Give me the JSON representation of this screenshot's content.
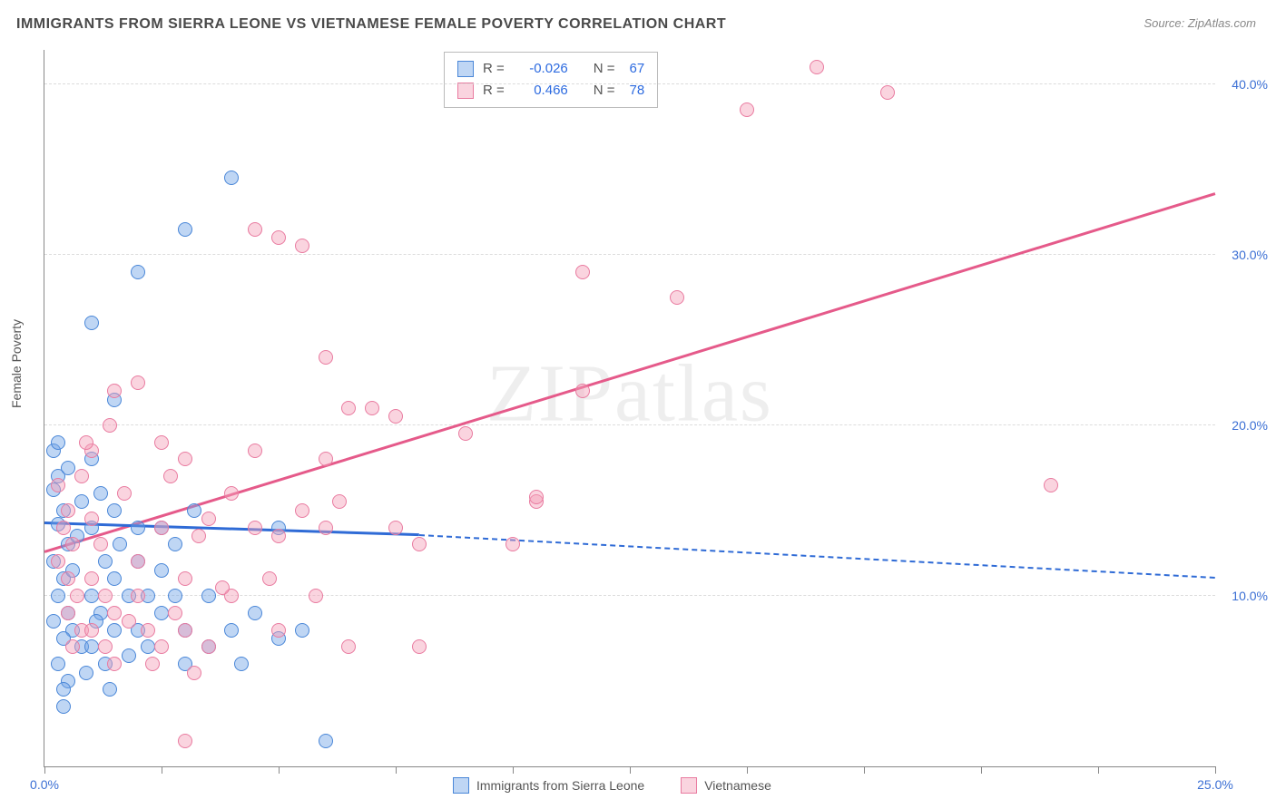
{
  "title": "IMMIGRANTS FROM SIERRA LEONE VS VIETNAMESE FEMALE POVERTY CORRELATION CHART",
  "source": "Source: ZipAtlas.com",
  "ylabel": "Female Poverty",
  "watermark": "ZIPatlas",
  "chart": {
    "type": "scatter",
    "xlim": [
      0,
      25
    ],
    "ylim": [
      0,
      42
    ],
    "xticks": [
      0,
      2.5,
      5,
      7.5,
      10,
      12.5,
      15,
      17.5,
      20,
      22.5,
      25
    ],
    "xtick_labels": {
      "0": "0.0%",
      "25": "25.0%"
    },
    "yticks": [
      10,
      20,
      30,
      40
    ],
    "ytick_labels": [
      "10.0%",
      "20.0%",
      "30.0%",
      "40.0%"
    ],
    "grid_color": "#dcdcdc",
    "axis_color": "#888888",
    "background_color": "#ffffff",
    "series": [
      {
        "name": "Immigrants from Sierra Leone",
        "color_fill": "rgba(113,164,231,0.45)",
        "color_stroke": "#4a87d8",
        "R": "-0.026",
        "N": "67",
        "trend": {
          "x1": 0,
          "y1": 14.2,
          "x2": 8.0,
          "y2": 13.5,
          "x2_dash": 25,
          "y2_dash": 11.0,
          "color": "#2f6bd6"
        },
        "points": [
          [
            0.2,
            18.5
          ],
          [
            0.3,
            17.0
          ],
          [
            0.2,
            16.2
          ],
          [
            0.4,
            15.0
          ],
          [
            0.3,
            14.2
          ],
          [
            0.5,
            13.0
          ],
          [
            0.2,
            12.0
          ],
          [
            0.4,
            11.0
          ],
          [
            0.3,
            10.0
          ],
          [
            0.5,
            9.0
          ],
          [
            0.2,
            8.5
          ],
          [
            0.6,
            8.0
          ],
          [
            0.4,
            7.5
          ],
          [
            0.8,
            7.0
          ],
          [
            0.3,
            6.0
          ],
          [
            0.5,
            5.0
          ],
          [
            0.4,
            3.5
          ],
          [
            1.0,
            18.0
          ],
          [
            1.2,
            16.0
          ],
          [
            1.0,
            14.0
          ],
          [
            1.3,
            12.0
          ],
          [
            1.0,
            10.0
          ],
          [
            1.2,
            9.0
          ],
          [
            1.5,
            8.0
          ],
          [
            1.0,
            7.0
          ],
          [
            1.3,
            6.0
          ],
          [
            1.5,
            11.0
          ],
          [
            1.6,
            13.0
          ],
          [
            1.8,
            10.0
          ],
          [
            2.0,
            14.0
          ],
          [
            2.0,
            12.0
          ],
          [
            2.2,
            10.0
          ],
          [
            2.0,
            8.0
          ],
          [
            2.2,
            7.0
          ],
          [
            2.5,
            9.0
          ],
          [
            2.5,
            14.0
          ],
          [
            2.8,
            10.0
          ],
          [
            3.0,
            8.0
          ],
          [
            3.0,
            6.0
          ],
          [
            3.5,
            7.0
          ],
          [
            3.5,
            10.0
          ],
          [
            4.0,
            8.0
          ],
          [
            4.5,
            9.0
          ],
          [
            5.0,
            7.5
          ],
          [
            5.0,
            14.0
          ],
          [
            5.5,
            8.0
          ],
          [
            6.0,
            1.5
          ],
          [
            0.3,
            19.0
          ],
          [
            1.0,
            26.0
          ],
          [
            1.5,
            21.5
          ],
          [
            2.0,
            29.0
          ],
          [
            3.0,
            31.5
          ],
          [
            4.0,
            34.5
          ],
          [
            0.5,
            17.5
          ],
          [
            0.8,
            15.5
          ],
          [
            1.5,
            15.0
          ],
          [
            0.6,
            11.5
          ],
          [
            2.5,
            11.5
          ],
          [
            1.8,
            6.5
          ],
          [
            2.8,
            13.0
          ],
          [
            0.9,
            5.5
          ],
          [
            1.4,
            4.5
          ],
          [
            3.2,
            15.0
          ],
          [
            4.2,
            6.0
          ],
          [
            0.7,
            13.5
          ],
          [
            1.1,
            8.5
          ],
          [
            0.4,
            4.5
          ]
        ]
      },
      {
        "name": "Vietnamese",
        "color_fill": "rgba(244,160,185,0.45)",
        "color_stroke": "#e97ba0",
        "R": "0.466",
        "N": "78",
        "trend": {
          "x1": 0,
          "y1": 12.5,
          "x2": 25,
          "y2": 33.5,
          "color": "#e55a8a"
        },
        "points": [
          [
            0.3,
            16.5
          ],
          [
            0.5,
            15.0
          ],
          [
            0.4,
            14.0
          ],
          [
            0.6,
            13.0
          ],
          [
            0.3,
            12.0
          ],
          [
            0.5,
            11.0
          ],
          [
            0.7,
            10.0
          ],
          [
            0.5,
            9.0
          ],
          [
            0.8,
            8.0
          ],
          [
            0.6,
            7.0
          ],
          [
            1.0,
            14.5
          ],
          [
            1.2,
            13.0
          ],
          [
            1.0,
            11.0
          ],
          [
            1.3,
            10.0
          ],
          [
            1.5,
            9.0
          ],
          [
            1.0,
            8.0
          ],
          [
            1.3,
            7.0
          ],
          [
            1.5,
            6.0
          ],
          [
            1.8,
            8.5
          ],
          [
            2.0,
            12.0
          ],
          [
            2.0,
            10.0
          ],
          [
            2.2,
            8.0
          ],
          [
            2.5,
            7.0
          ],
          [
            2.5,
            14.0
          ],
          [
            2.8,
            9.0
          ],
          [
            3.0,
            11.0
          ],
          [
            3.0,
            8.0
          ],
          [
            3.5,
            7.0
          ],
          [
            3.5,
            14.5
          ],
          [
            4.0,
            10.0
          ],
          [
            4.5,
            14.0
          ],
          [
            5.0,
            13.5
          ],
          [
            5.0,
            8.0
          ],
          [
            5.5,
            15.0
          ],
          [
            6.0,
            14.0
          ],
          [
            6.5,
            7.0
          ],
          [
            7.0,
            21.0
          ],
          [
            7.5,
            14.0
          ],
          [
            8.0,
            7.0
          ],
          [
            8.0,
            13.0
          ],
          [
            9.0,
            19.5
          ],
          [
            10.0,
            13.0
          ],
          [
            10.5,
            15.5
          ],
          [
            10.5,
            15.8
          ],
          [
            3.0,
            1.5
          ],
          [
            4.5,
            31.5
          ],
          [
            5.0,
            31.0
          ],
          [
            5.5,
            30.5
          ],
          [
            6.0,
            24.0
          ],
          [
            6.5,
            21.0
          ],
          [
            1.5,
            22.0
          ],
          [
            2.0,
            22.5
          ],
          [
            2.5,
            19.0
          ],
          [
            3.0,
            18.0
          ],
          [
            4.0,
            16.0
          ],
          [
            1.0,
            18.5
          ],
          [
            0.8,
            17.0
          ],
          [
            4.5,
            18.5
          ],
          [
            6.0,
            18.0
          ],
          [
            11.5,
            29.0
          ],
          [
            11.5,
            22.0
          ],
          [
            13.5,
            27.5
          ],
          [
            15.0,
            38.5
          ],
          [
            16.5,
            41.0
          ],
          [
            18.0,
            39.5
          ],
          [
            21.5,
            16.5
          ],
          [
            2.3,
            6.0
          ],
          [
            3.2,
            5.5
          ],
          [
            1.7,
            16.0
          ],
          [
            0.9,
            19.0
          ],
          [
            3.8,
            10.5
          ],
          [
            4.8,
            11.0
          ],
          [
            5.8,
            10.0
          ],
          [
            2.7,
            17.0
          ],
          [
            1.4,
            20.0
          ],
          [
            7.5,
            20.5
          ],
          [
            6.3,
            15.5
          ],
          [
            3.3,
            13.5
          ]
        ]
      }
    ]
  },
  "legend_bottom": [
    {
      "swatch": "blue",
      "label": "Immigrants from Sierra Leone"
    },
    {
      "swatch": "pink",
      "label": "Vietnamese"
    }
  ]
}
